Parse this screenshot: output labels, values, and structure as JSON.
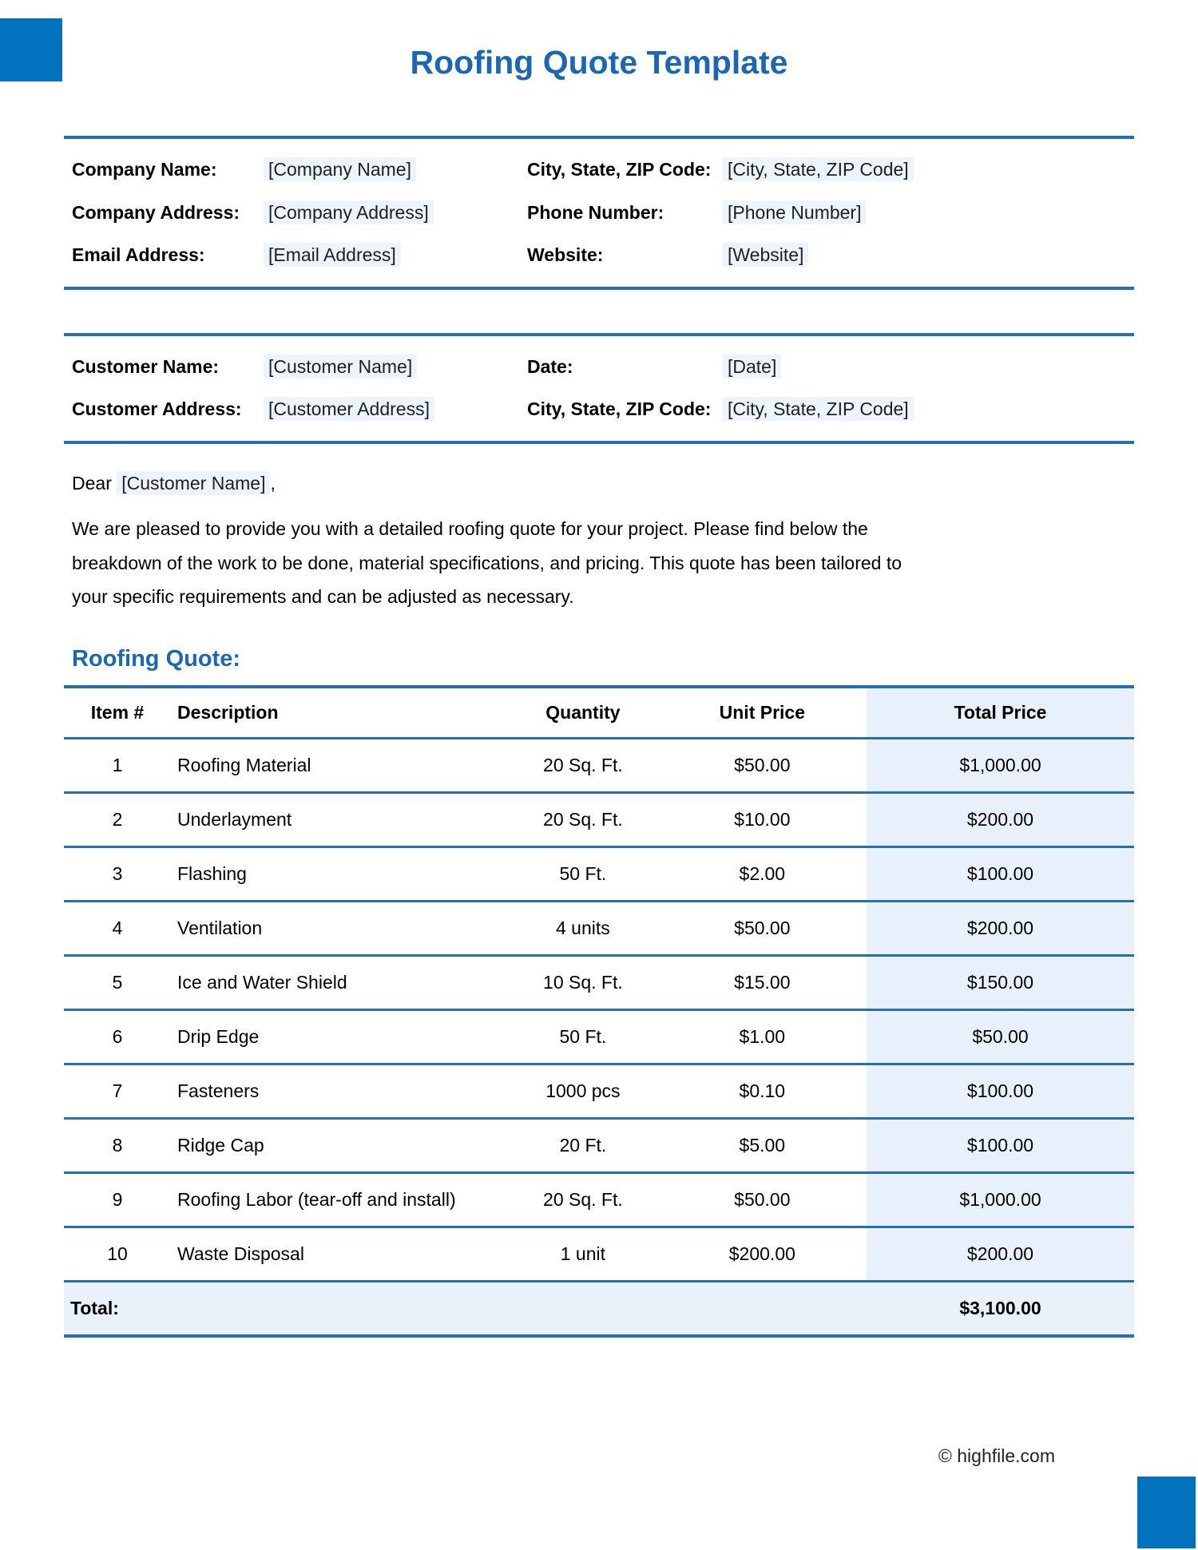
{
  "page": {
    "title": "Roofing Quote Template",
    "footer": "© highfile.com"
  },
  "colors": {
    "accent_blue": "#0272BF",
    "heading_blue": "#1B67B2",
    "border_blue": "#2470B3",
    "field_highlight_bg": "#EDF4FC",
    "total_column_bg": "#E8F1FB"
  },
  "company_info": {
    "fields": [
      {
        "label": "Company Name:",
        "value": "[Company Name]"
      },
      {
        "label": "City, State, ZIP Code:",
        "value": "[City, State, ZIP Code]"
      },
      {
        "label": "Company Address:",
        "value": "[Company Address]"
      },
      {
        "label": "Phone Number:",
        "value": "[Phone Number]"
      },
      {
        "label": "Email Address:",
        "value": "[Email Address]"
      },
      {
        "label": "Website:",
        "value": "[Website]"
      }
    ]
  },
  "customer_info": {
    "fields": [
      {
        "label": "Customer Name:",
        "value": "[Customer Name]"
      },
      {
        "label": "Date:",
        "value": "[Date]"
      },
      {
        "label": "Customer Address:",
        "value": "[Customer Address]"
      },
      {
        "label": "City, State, ZIP Code:",
        "value": "[City, State, ZIP Code]"
      }
    ]
  },
  "letter": {
    "greeting_prefix": "Dear ",
    "greeting_name": "[Customer Name]",
    "greeting_suffix": ",",
    "body": "We are pleased to provide you with a detailed roofing quote for your project. Please find below the breakdown of the work to be done, material specifications, and pricing. This quote has been tailored to your specific requirements and can be adjusted as necessary."
  },
  "quote_section": {
    "heading": "Roofing Quote:",
    "table": {
      "headers": [
        "Item #",
        "Description",
        "Quantity",
        "Unit Price",
        "Total Price"
      ],
      "rows": [
        {
          "item": "1",
          "description": "Roofing Material",
          "quantity": "20 Sq. Ft.",
          "unit_price": "$50.00",
          "total_price": "$1,000.00"
        },
        {
          "item": "2",
          "description": "Underlayment",
          "quantity": "20 Sq. Ft.",
          "unit_price": "$10.00",
          "total_price": "$200.00"
        },
        {
          "item": "3",
          "description": "Flashing",
          "quantity": "50 Ft.",
          "unit_price": "$2.00",
          "total_price": "$100.00"
        },
        {
          "item": "4",
          "description": "Ventilation",
          "quantity": "4 units",
          "unit_price": "$50.00",
          "total_price": "$200.00"
        },
        {
          "item": "5",
          "description": "Ice and Water Shield",
          "quantity": "10 Sq. Ft.",
          "unit_price": "$15.00",
          "total_price": "$150.00"
        },
        {
          "item": "6",
          "description": "Drip Edge",
          "quantity": "50 Ft.",
          "unit_price": "$1.00",
          "total_price": "$50.00"
        },
        {
          "item": "7",
          "description": "Fasteners",
          "quantity": "1000 pcs",
          "unit_price": "$0.10",
          "total_price": "$100.00"
        },
        {
          "item": "8",
          "description": "Ridge Cap",
          "quantity": "20 Ft.",
          "unit_price": "$5.00",
          "total_price": "$100.00"
        },
        {
          "item": "9",
          "description": "Roofing Labor (tear-off and install)",
          "quantity": "20 Sq. Ft.",
          "unit_price": "$50.00",
          "total_price": "$1,000.00"
        },
        {
          "item": "10",
          "description": "Waste Disposal",
          "quantity": "1 unit",
          "unit_price": "$200.00",
          "total_price": "$200.00"
        }
      ],
      "total_label": "Total:",
      "total_value": "$3,100.00"
    }
  }
}
